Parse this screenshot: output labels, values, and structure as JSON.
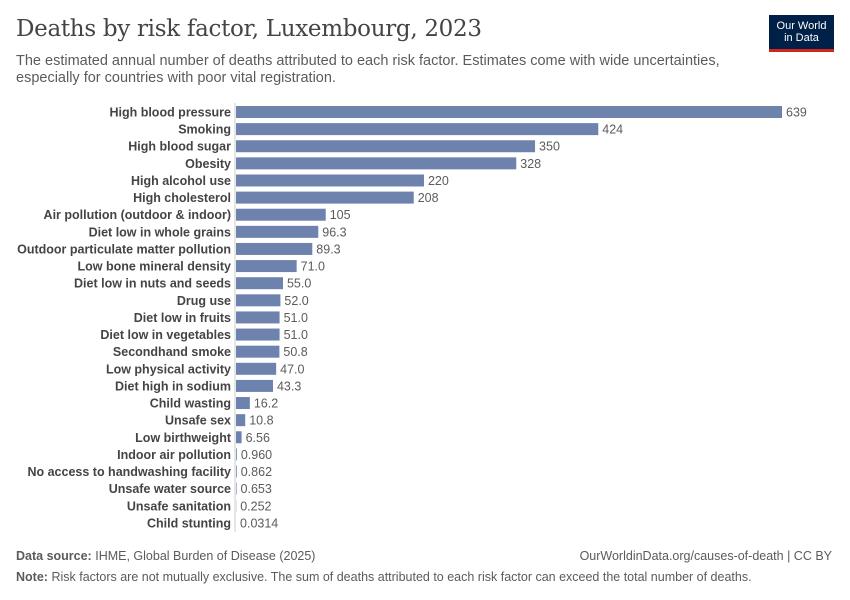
{
  "header": {
    "title": "Deaths by risk factor, Luxembourg, 2023",
    "subtitle": "The estimated annual number of deaths attributed to each risk factor. Estimates come with wide uncertainties, especially for countries with poor vital registration.",
    "logo_line1": "Our World",
    "logo_line2": "in Data"
  },
  "colors": {
    "bar": "#6d83ad",
    "axis": "#cccccc",
    "label": "#444444",
    "value": "#5b5b5b",
    "logo_bg": "#002147",
    "logo_accent": "#ce261e"
  },
  "chart_data": {
    "type": "bar",
    "orientation": "horizontal",
    "categories": [
      "High blood pressure",
      "Smoking",
      "High blood sugar",
      "Obesity",
      "High alcohol use",
      "High cholesterol",
      "Air pollution (outdoor & indoor)",
      "Diet low in whole grains",
      "Outdoor particulate matter pollution",
      "Low bone mineral density",
      "Diet low in nuts and seeds",
      "Drug use",
      "Diet low in fruits",
      "Diet low in vegetables",
      "Secondhand smoke",
      "Low physical activity",
      "Diet high in sodium",
      "Child wasting",
      "Unsafe sex",
      "Low birthweight",
      "Indoor air pollution",
      "No access to handwashing facility",
      "Unsafe water source",
      "Unsafe sanitation",
      "Child stunting"
    ],
    "values": [
      639,
      424,
      350,
      328,
      220,
      208,
      105,
      96.3,
      89.3,
      71.0,
      55.0,
      52.0,
      51.0,
      51.0,
      50.8,
      47.0,
      43.3,
      16.2,
      10.8,
      6.56,
      0.96,
      0.862,
      0.653,
      0.252,
      0.0314
    ],
    "value_labels": [
      "639",
      "424",
      "350",
      "328",
      "220",
      "208",
      "105",
      "96.3",
      "89.3",
      "71.0",
      "55.0",
      "52.0",
      "51.0",
      "51.0",
      "50.8",
      "47.0",
      "43.3",
      "16.2",
      "10.8",
      "6.56",
      "0.960",
      "0.862",
      "0.653",
      "0.252",
      "0.0314"
    ],
    "xlim": [
      0,
      639
    ],
    "grid": false,
    "legend": "none"
  },
  "footer": {
    "source_label": "Data source:",
    "source_text": "IHME, Global Burden of Disease (2025)",
    "url_text": "OurWorldinData.org/causes-of-death | CC BY",
    "note_label": "Note:",
    "note_text": "Risk factors are not mutually exclusive. The sum of deaths attributed to each risk factor can exceed the total number of deaths."
  }
}
